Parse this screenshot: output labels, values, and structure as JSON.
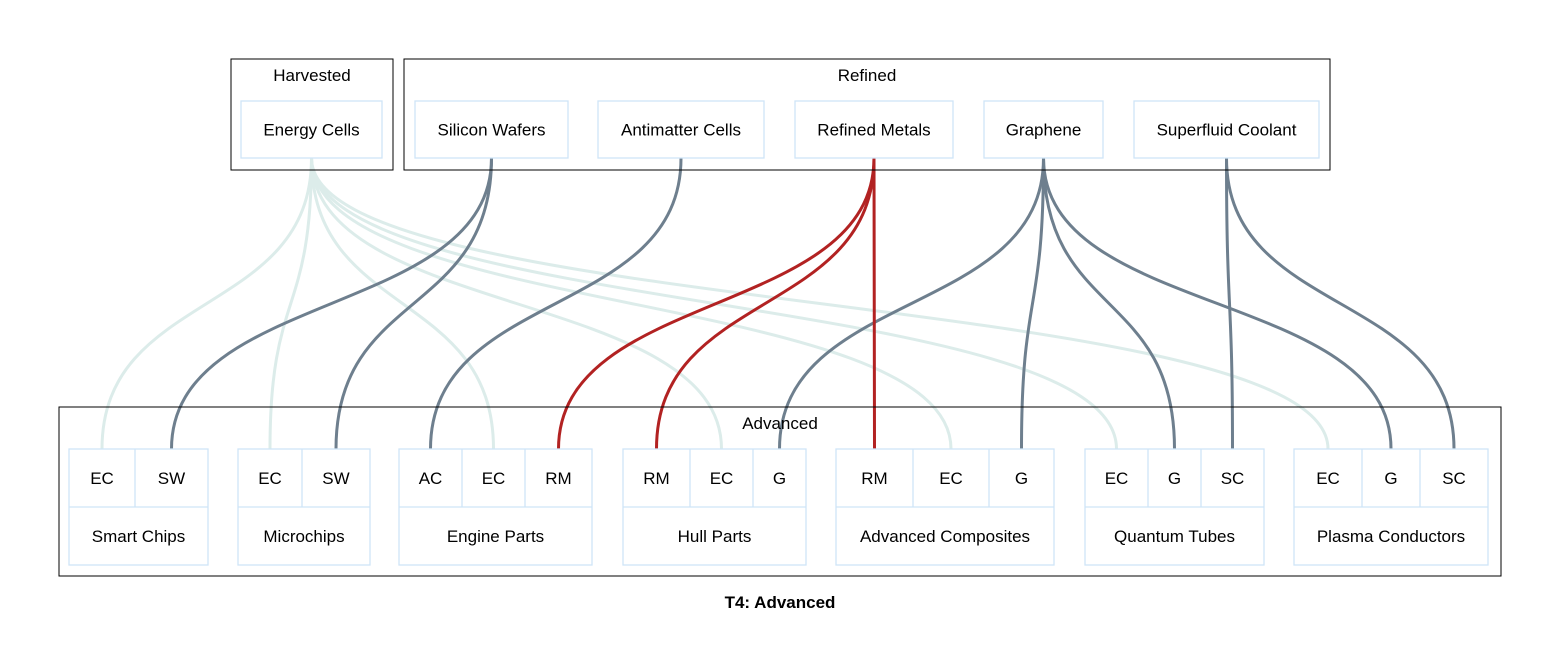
{
  "title": "T4: Advanced",
  "colors": {
    "cluster_border": "#000000",
    "node_border": "#cfe5f7",
    "edge_faint": "#dcecea",
    "edge_normal": "#6e7f8e",
    "edge_highlight": "#b22222"
  },
  "clusters": {
    "harvested": "Harvested",
    "refined": "Refined",
    "advanced": "Advanced"
  },
  "sources": [
    {
      "id": "energy_cells",
      "label": "Energy Cells"
    },
    {
      "id": "silicon_wafers",
      "label": "Silicon Wafers"
    },
    {
      "id": "antimatter_cells",
      "label": "Antimatter Cells"
    },
    {
      "id": "refined_metals",
      "label": "Refined Metals"
    },
    {
      "id": "graphene",
      "label": "Graphene"
    },
    {
      "id": "superfluid_coolant",
      "label": "Superfluid Coolant"
    }
  ],
  "products": [
    {
      "id": "smart_chips",
      "label": "Smart Chips",
      "ports": [
        "EC",
        "SW"
      ]
    },
    {
      "id": "microchips",
      "label": "Microchips",
      "ports": [
        "EC",
        "SW"
      ]
    },
    {
      "id": "engine_parts",
      "label": "Engine Parts",
      "ports": [
        "AC",
        "EC",
        "RM"
      ]
    },
    {
      "id": "hull_parts",
      "label": "Hull Parts",
      "ports": [
        "RM",
        "EC",
        "G"
      ]
    },
    {
      "id": "advanced_composites",
      "label": "Advanced Composites",
      "ports": [
        "RM",
        "EC",
        "G"
      ]
    },
    {
      "id": "quantum_tubes",
      "label": "Quantum Tubes",
      "ports": [
        "EC",
        "G",
        "SC"
      ]
    },
    {
      "id": "plasma_conductors",
      "label": "Plasma Conductors",
      "ports": [
        "EC",
        "G",
        "SC"
      ]
    }
  ],
  "edges": [
    {
      "from": "energy_cells",
      "to": "smart_chips",
      "port": 0,
      "style": "faint"
    },
    {
      "from": "energy_cells",
      "to": "microchips",
      "port": 0,
      "style": "faint"
    },
    {
      "from": "energy_cells",
      "to": "engine_parts",
      "port": 1,
      "style": "faint"
    },
    {
      "from": "energy_cells",
      "to": "hull_parts",
      "port": 1,
      "style": "faint"
    },
    {
      "from": "energy_cells",
      "to": "advanced_composites",
      "port": 1,
      "style": "faint"
    },
    {
      "from": "energy_cells",
      "to": "quantum_tubes",
      "port": 0,
      "style": "faint"
    },
    {
      "from": "energy_cells",
      "to": "plasma_conductors",
      "port": 0,
      "style": "faint"
    },
    {
      "from": "silicon_wafers",
      "to": "smart_chips",
      "port": 1,
      "style": "normal"
    },
    {
      "from": "silicon_wafers",
      "to": "microchips",
      "port": 1,
      "style": "normal"
    },
    {
      "from": "antimatter_cells",
      "to": "engine_parts",
      "port": 0,
      "style": "normal"
    },
    {
      "from": "refined_metals",
      "to": "engine_parts",
      "port": 2,
      "style": "highlight"
    },
    {
      "from": "refined_metals",
      "to": "hull_parts",
      "port": 0,
      "style": "highlight"
    },
    {
      "from": "refined_metals",
      "to": "advanced_composites",
      "port": 0,
      "style": "highlight"
    },
    {
      "from": "graphene",
      "to": "hull_parts",
      "port": 2,
      "style": "normal"
    },
    {
      "from": "graphene",
      "to": "advanced_composites",
      "port": 2,
      "style": "normal"
    },
    {
      "from": "graphene",
      "to": "quantum_tubes",
      "port": 1,
      "style": "normal"
    },
    {
      "from": "graphene",
      "to": "plasma_conductors",
      "port": 1,
      "style": "normal"
    },
    {
      "from": "superfluid_coolant",
      "to": "quantum_tubes",
      "port": 2,
      "style": "normal"
    },
    {
      "from": "superfluid_coolant",
      "to": "plasma_conductors",
      "port": 2,
      "style": "normal"
    }
  ]
}
